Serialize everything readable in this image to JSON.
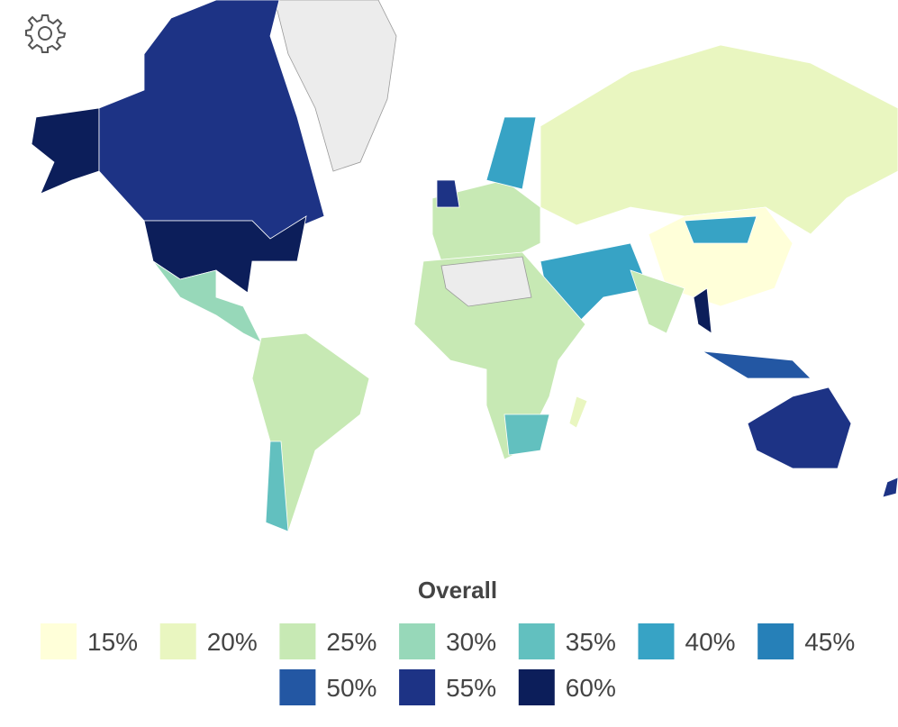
{
  "legend": {
    "title": "Overall",
    "items": [
      {
        "label": "15%",
        "color": "#ffffd9"
      },
      {
        "label": "20%",
        "color": "#e9f6c0"
      },
      {
        "label": "25%",
        "color": "#c7e9b4"
      },
      {
        "label": "30%",
        "color": "#97d8b9"
      },
      {
        "label": "35%",
        "color": "#62c0bf"
      },
      {
        "label": "40%",
        "color": "#37a3c5"
      },
      {
        "label": "45%",
        "color": "#2680b8"
      },
      {
        "label": "50%",
        "color": "#2357a3"
      },
      {
        "label": "55%",
        "color": "#1d3385"
      },
      {
        "label": "60%",
        "color": "#0c1e5a"
      }
    ]
  }
}
